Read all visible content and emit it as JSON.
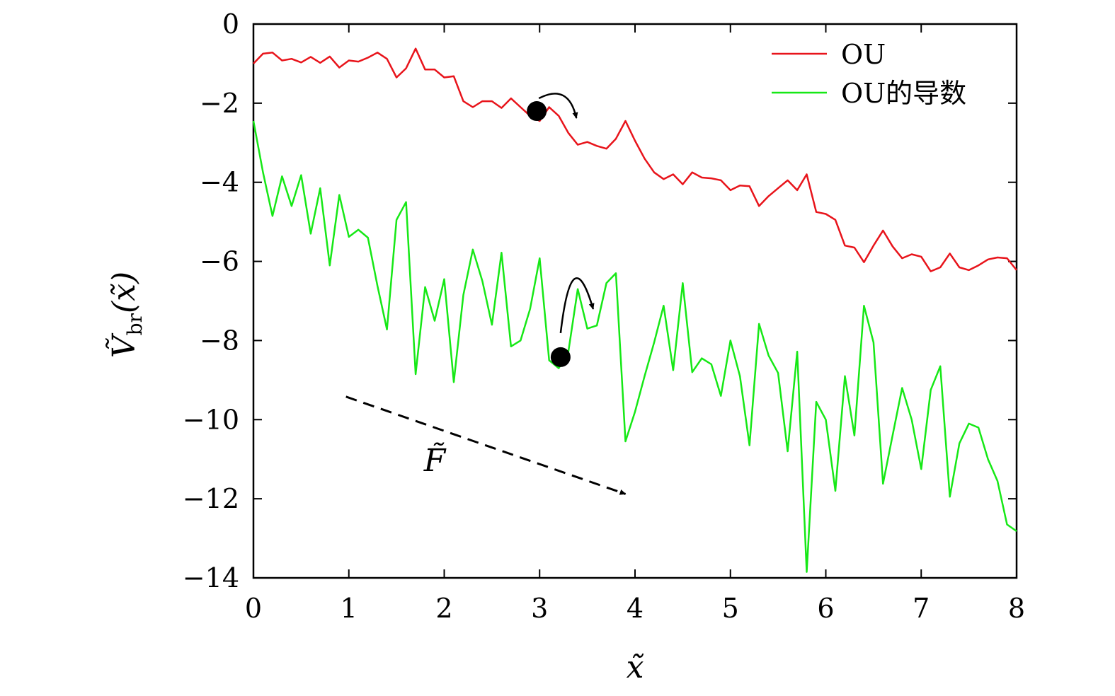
{
  "chart_data": {
    "type": "line",
    "xlabel": "x̃",
    "ylabel_main": "Ṽ",
    "ylabel_sub": "br",
    "ylabel_arg": "(x̃)",
    "force_label": "F̃",
    "xlim": [
      0,
      8
    ],
    "ylim": [
      -14,
      0
    ],
    "x_ticks": [
      0,
      1,
      2,
      3,
      4,
      5,
      6,
      7,
      8
    ],
    "y_ticks": [
      0,
      -2,
      -4,
      -6,
      -8,
      -10,
      -12,
      -14
    ],
    "x_tick_labels": [
      "0",
      "1",
      "2",
      "3",
      "4",
      "5",
      "6",
      "7",
      "8"
    ],
    "y_tick_labels": [
      "0",
      "−2",
      "−4",
      "−6",
      "−8",
      "−10",
      "−12",
      "−14"
    ],
    "legend_position": "top-right",
    "x": [
      0.0,
      0.1,
      0.2,
      0.3,
      0.4,
      0.5,
      0.6,
      0.7,
      0.8,
      0.9,
      1.0,
      1.1,
      1.2,
      1.3,
      1.4,
      1.5,
      1.6,
      1.7,
      1.8,
      1.9,
      2.0,
      2.1,
      2.2,
      2.3,
      2.4,
      2.5,
      2.6,
      2.7,
      2.8,
      2.9,
      3.0,
      3.1,
      3.2,
      3.3,
      3.4,
      3.5,
      3.6,
      3.7,
      3.8,
      3.9,
      4.0,
      4.1,
      4.2,
      4.3,
      4.4,
      4.5,
      4.6,
      4.7,
      4.8,
      4.9,
      5.0,
      5.1,
      5.2,
      5.3,
      5.4,
      5.5,
      5.6,
      5.7,
      5.8,
      5.9,
      6.0,
      6.1,
      6.2,
      6.3,
      6.4,
      6.5,
      6.6,
      6.7,
      6.8,
      6.9,
      7.0,
      7.1,
      7.2,
      7.3,
      7.4,
      7.5,
      7.6,
      7.7,
      7.8,
      7.9,
      8.0
    ],
    "series": [
      {
        "name": "OU",
        "color": "#e8141b",
        "values": [
          -1.0,
          -0.75,
          -0.72,
          -0.92,
          -0.88,
          -0.97,
          -0.83,
          -0.98,
          -0.82,
          -1.1,
          -0.92,
          -0.95,
          -0.85,
          -0.72,
          -0.88,
          -1.35,
          -1.12,
          -0.62,
          -1.15,
          -1.15,
          -1.35,
          -1.32,
          -1.95,
          -2.1,
          -1.95,
          -1.95,
          -2.12,
          -1.88,
          -2.1,
          -2.32,
          -2.45,
          -2.1,
          -2.32,
          -2.75,
          -3.05,
          -2.98,
          -3.08,
          -3.15,
          -2.9,
          -2.45,
          -2.95,
          -3.4,
          -3.75,
          -3.92,
          -3.8,
          -4.05,
          -3.75,
          -3.88,
          -3.9,
          -3.95,
          -4.2,
          -4.08,
          -4.1,
          -4.6,
          -4.35,
          -4.15,
          -3.95,
          -4.2,
          -3.8,
          -4.75,
          -4.8,
          -4.95,
          -5.6,
          -5.65,
          -6.02,
          -5.6,
          -5.22,
          -5.62,
          -5.92,
          -5.82,
          -5.88,
          -6.25,
          -6.15,
          -5.8,
          -6.15,
          -6.22,
          -6.1,
          -5.95,
          -5.9,
          -5.92,
          -6.22
        ]
      },
      {
        "name": "OU的导数",
        "color": "#16e816",
        "values": [
          -2.45,
          -3.75,
          -4.85,
          -3.85,
          -4.6,
          -3.82,
          -5.3,
          -4.15,
          -6.1,
          -4.32,
          -5.38,
          -5.2,
          -5.4,
          -6.62,
          -7.72,
          -4.95,
          -4.5,
          -8.85,
          -6.65,
          -7.5,
          -6.45,
          -9.05,
          -6.85,
          -5.7,
          -6.5,
          -7.6,
          -5.78,
          -8.15,
          -8.0,
          -7.2,
          -5.92,
          -8.5,
          -8.7,
          -8.3,
          -6.7,
          -7.7,
          -7.62,
          -6.55,
          -6.3,
          -10.55,
          -9.8,
          -8.9,
          -8.05,
          -7.12,
          -8.75,
          -6.55,
          -8.8,
          -8.45,
          -8.6,
          -9.4,
          -8.0,
          -8.9,
          -10.65,
          -7.58,
          -8.38,
          -8.82,
          -10.8,
          -8.28,
          -13.85,
          -9.55,
          -10.0,
          -11.8,
          -8.9,
          -10.4,
          -7.12,
          -8.05,
          -11.62,
          -10.4,
          -9.2,
          -10.0,
          -11.25,
          -9.25,
          -8.65,
          -11.95,
          -10.6,
          -10.1,
          -10.2,
          -11.0,
          -11.55,
          -12.65,
          -12.82
        ]
      }
    ],
    "annotations": {
      "ball_ou": {
        "x": 2.97,
        "y": -2.2
      },
      "ball_deriv": {
        "x": 3.22,
        "y": -8.42
      },
      "force_arrow": {
        "from": [
          0.97,
          -9.42
        ],
        "to": [
          3.9,
          -11.88
        ]
      },
      "force_label_pos": {
        "x": 1.9,
        "y": -11.3
      }
    }
  }
}
